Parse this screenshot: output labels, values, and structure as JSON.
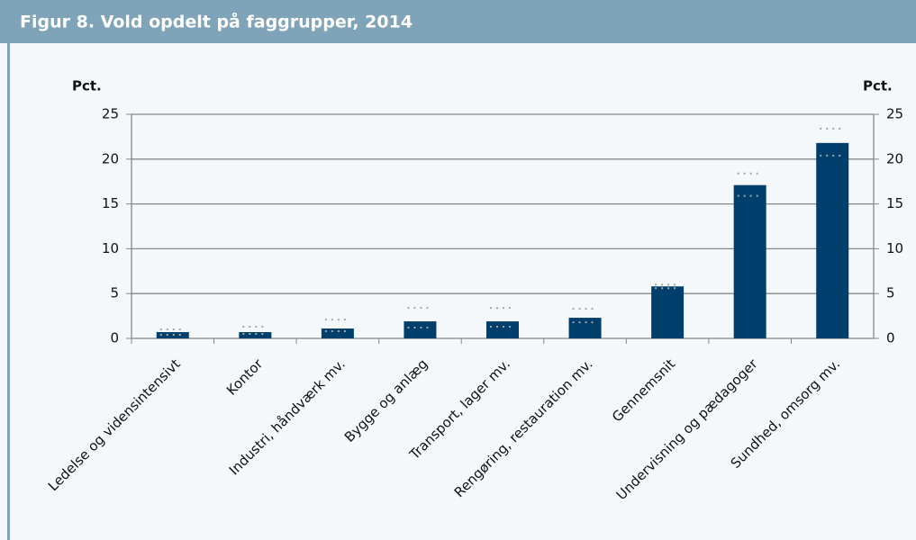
{
  "chart_data": {
    "type": "bar",
    "title": "Figur 8. Vold opdelt på faggrupper, 2014",
    "ylabel": "Pct.",
    "y2label": "Pct.",
    "categories": [
      "Ledelse og vidensintensivt",
      "Kontor",
      "Industri, håndværk mv.",
      "Bygge og anlæg",
      "Transport, lager mv.",
      "Rengøring, restauration mv.",
      "Gennemsnit",
      "Undervisning og pædagoger",
      "Sundhed, omsorg mv."
    ],
    "values": [
      0.7,
      0.7,
      1.1,
      1.9,
      1.9,
      2.3,
      5.8,
      17.1,
      21.8
    ],
    "ci_low": [
      0.4,
      0.5,
      0.8,
      1.2,
      1.3,
      1.8,
      5.6,
      15.9,
      20.4
    ],
    "ci_high": [
      1.0,
      1.3,
      2.1,
      3.4,
      3.4,
      3.3,
      6.0,
      18.4,
      23.4
    ],
    "color": "#003f6b",
    "ylim": [
      0,
      25
    ],
    "yticks": [
      0,
      5,
      10,
      15,
      20,
      25
    ],
    "y2lim": [
      0,
      25
    ],
    "y2ticks": [
      0,
      5,
      10,
      15,
      20,
      25
    ]
  }
}
